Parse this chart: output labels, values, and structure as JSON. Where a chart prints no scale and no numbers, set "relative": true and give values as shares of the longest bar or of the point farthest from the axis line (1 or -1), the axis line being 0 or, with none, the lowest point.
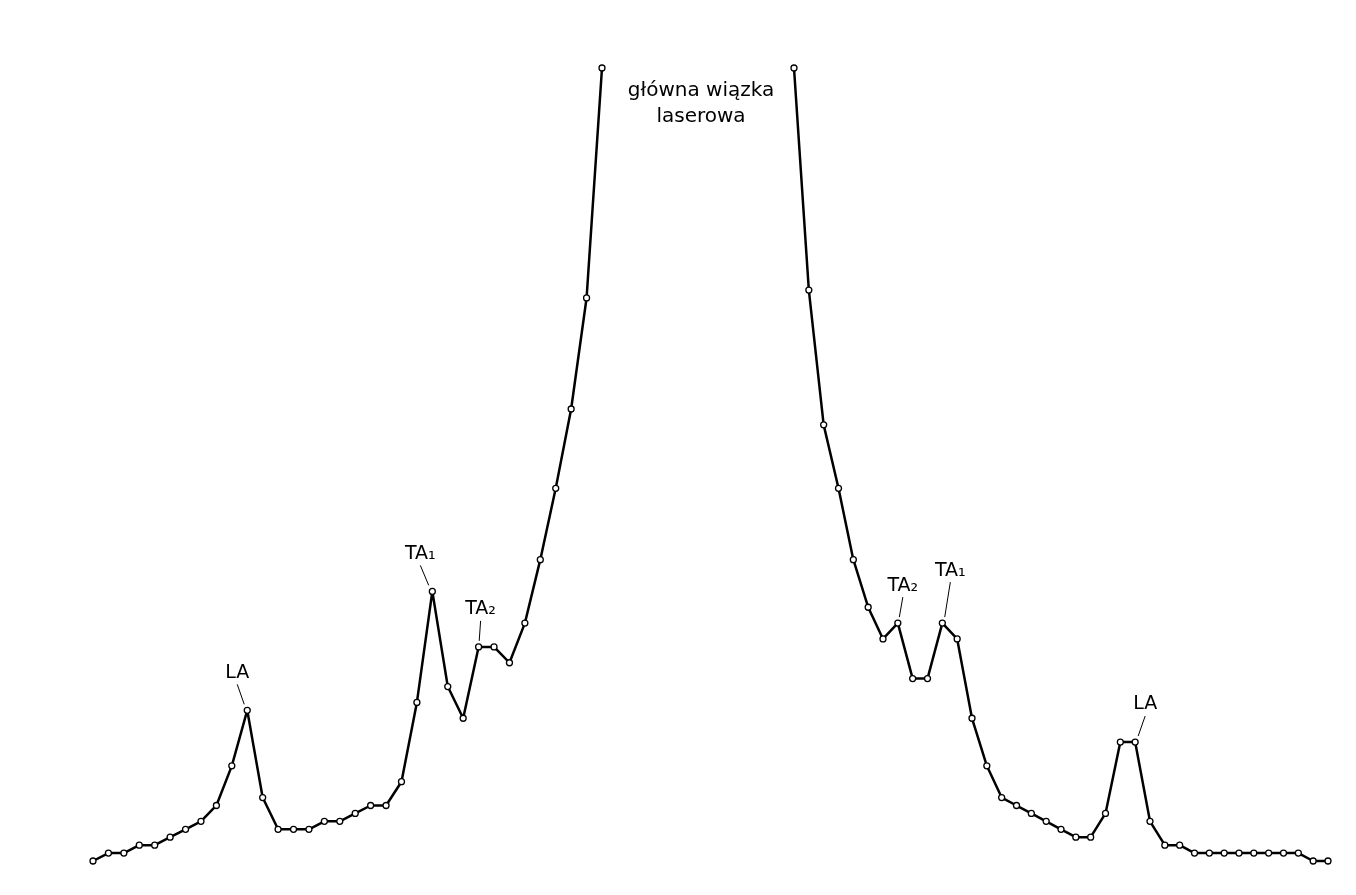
{
  "chart_data": [
    {
      "type": "line",
      "relative": true,
      "legend": false,
      "categories": [
        null,
        null,
        null,
        null,
        null,
        null,
        null,
        null,
        null,
        null,
        null,
        null,
        null,
        null,
        null,
        null,
        null,
        null,
        null,
        null,
        null,
        null,
        null,
        null,
        null,
        null,
        null,
        null,
        null,
        null,
        null,
        null,
        null,
        null
      ],
      "series": [
        {
          "color": "#000000",
          "marker": "circle",
          "line_style": "solid",
          "values": [
            0,
            0.01,
            0.01,
            0.02,
            0.02,
            0.03,
            0.04,
            0.05,
            0.07,
            0.12,
            0.19,
            0.08,
            0.04,
            0.04,
            0.04,
            0.05,
            0.05,
            0.06,
            0.07,
            0.07,
            0.1,
            0.2,
            0.34,
            0.22,
            0.18,
            0.27,
            0.27,
            0.25,
            0.3,
            0.38,
            0.47,
            0.57,
            0.71,
            1
          ]
        }
      ],
      "annotations": [
        "główna wiązka laserowa",
        "LA",
        "TA₁",
        "TA₂"
      ]
    },
    {
      "type": "line",
      "relative": true,
      "legend": false,
      "categories": [
        null,
        null,
        null,
        null,
        null,
        null,
        null,
        null,
        null,
        null,
        null,
        null,
        null,
        null,
        null,
        null,
        null,
        null,
        null,
        null,
        null,
        null,
        null,
        null,
        null,
        null,
        null,
        null,
        null,
        null,
        null,
        null,
        null,
        null,
        null,
        null,
        null
      ],
      "series": [
        {
          "color": "#000000",
          "marker": "circle",
          "line_style": "solid",
          "values": [
            1,
            0.72,
            0.55,
            0.47,
            0.38,
            0.32,
            0.28,
            0.3,
            0.23,
            0.23,
            0.3,
            0.28,
            0.18,
            0.12,
            0.08,
            0.07,
            0.06,
            0.05,
            0.04,
            0.03,
            0.03,
            0.06,
            0.15,
            0.15,
            0.05,
            0.02,
            0.02,
            0.01,
            0.01,
            0.01,
            0.01,
            0.01,
            0.01,
            0.01,
            0.01,
            0,
            0
          ]
        }
      ],
      "annotations": [
        "TA₂",
        "TA₁",
        "LA"
      ]
    }
  ]
}
